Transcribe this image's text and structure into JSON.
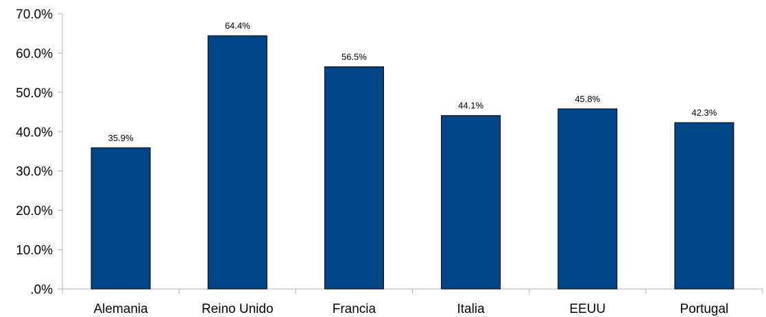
{
  "chart_data": {
    "type": "bar",
    "categories": [
      "Alemania",
      "Reino Unido",
      "Francia",
      "Italia",
      "EEUU",
      "Portugal"
    ],
    "values": [
      35.9,
      64.4,
      56.5,
      44.1,
      45.8,
      42.3
    ],
    "value_labels": [
      "35.9%",
      "64.4%",
      "56.5%",
      "44.1%",
      "45.8%",
      "42.3%"
    ],
    "y_ticks": [
      0,
      10,
      20,
      30,
      40,
      50,
      60,
      70
    ],
    "y_tick_labels": [
      ".0%",
      "10.0%",
      "20.0%",
      "30.0%",
      "40.0%",
      "50.0%",
      "60.0%",
      "70.0%"
    ],
    "ylim": [
      0,
      70
    ],
    "grid": false,
    "legend": "none",
    "bar_color": "#004586",
    "bar_edge_color": "#000000",
    "axis_color": "#b3b3b3"
  }
}
